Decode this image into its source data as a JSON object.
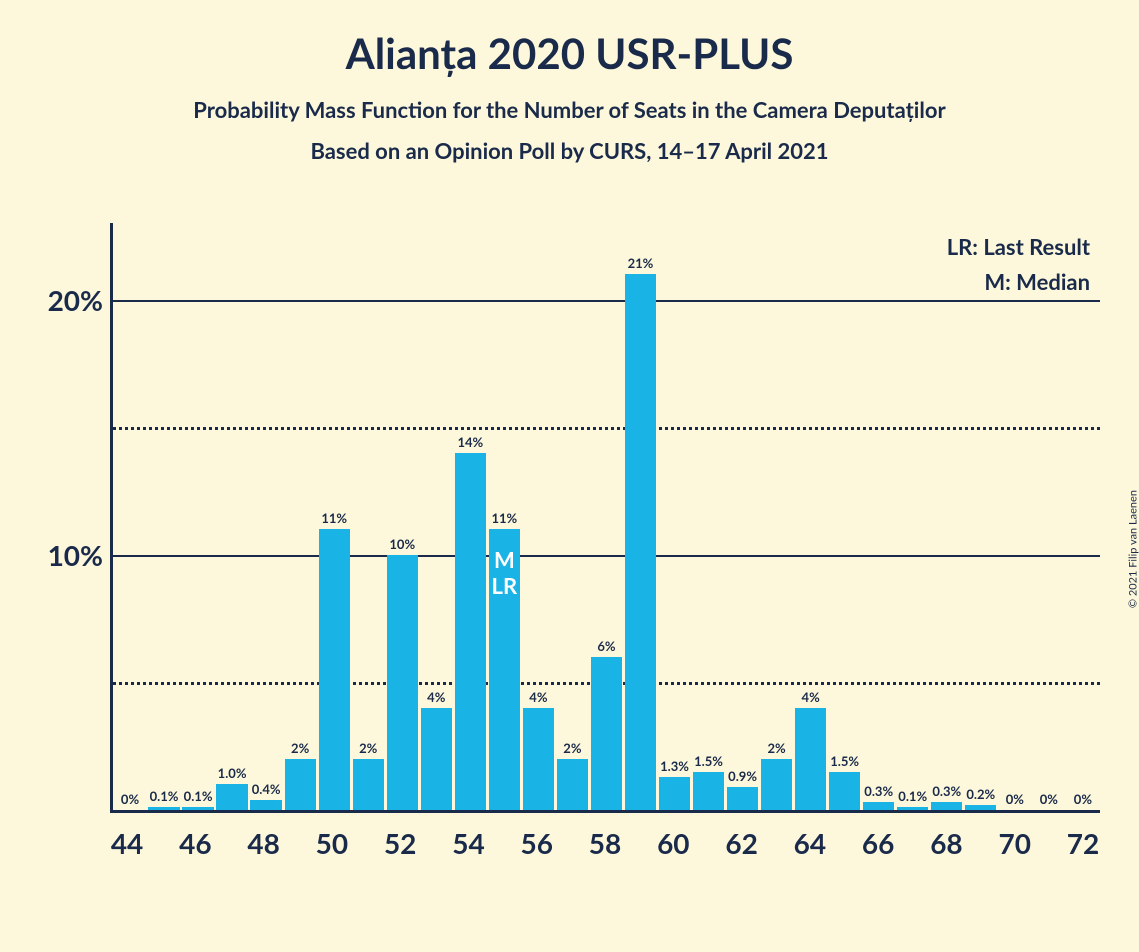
{
  "copyright": "© 2021 Filip van Laenen",
  "title": "Alianța 2020 USR-PLUS",
  "subtitle1": "Probability Mass Function for the Number of Seats in the Camera Deputaților",
  "subtitle2": "Based on an Opinion Poll by CURS, 14–17 April 2021",
  "legend": {
    "lr": "LR: Last Result",
    "m": "M: Median"
  },
  "chart": {
    "type": "bar",
    "bar_color": "#19b3e6",
    "background_color": "#fdf8db",
    "text_color": "#1a2a4a",
    "marker_text_color": "#ffffff",
    "ylim": [
      0,
      23
    ],
    "y_ticks": [
      {
        "value": 20,
        "label": "20%",
        "style": "solid"
      },
      {
        "value": 15,
        "label": "",
        "style": "dotted"
      },
      {
        "value": 10,
        "label": "10%",
        "style": "solid"
      },
      {
        "value": 5,
        "label": "",
        "style": "dotted"
      }
    ],
    "x_tick_every": 2,
    "bars": [
      {
        "x": 44,
        "value": 0,
        "label": "0%"
      },
      {
        "x": 45,
        "value": 0.1,
        "label": "0.1%"
      },
      {
        "x": 46,
        "value": 0.1,
        "label": "0.1%"
      },
      {
        "x": 47,
        "value": 1.0,
        "label": "1.0%"
      },
      {
        "x": 48,
        "value": 0.4,
        "label": "0.4%"
      },
      {
        "x": 49,
        "value": 2,
        "label": "2%"
      },
      {
        "x": 50,
        "value": 11,
        "label": "11%"
      },
      {
        "x": 51,
        "value": 2,
        "label": "2%"
      },
      {
        "x": 52,
        "value": 10,
        "label": "10%"
      },
      {
        "x": 53,
        "value": 4,
        "label": "4%"
      },
      {
        "x": 54,
        "value": 14,
        "label": "14%"
      },
      {
        "x": 55,
        "value": 11,
        "label": "11%",
        "marker": "M\nLR"
      },
      {
        "x": 56,
        "value": 4,
        "label": "4%"
      },
      {
        "x": 57,
        "value": 2,
        "label": "2%"
      },
      {
        "x": 58,
        "value": 6,
        "label": "6%"
      },
      {
        "x": 59,
        "value": 21,
        "label": "21%"
      },
      {
        "x": 60,
        "value": 1.3,
        "label": "1.3%"
      },
      {
        "x": 61,
        "value": 1.5,
        "label": "1.5%"
      },
      {
        "x": 62,
        "value": 0.9,
        "label": "0.9%"
      },
      {
        "x": 63,
        "value": 2,
        "label": "2%"
      },
      {
        "x": 64,
        "value": 4,
        "label": "4%"
      },
      {
        "x": 65,
        "value": 1.5,
        "label": "1.5%"
      },
      {
        "x": 66,
        "value": 0.3,
        "label": "0.3%"
      },
      {
        "x": 67,
        "value": 0.1,
        "label": "0.1%"
      },
      {
        "x": 68,
        "value": 0.3,
        "label": "0.3%"
      },
      {
        "x": 69,
        "value": 0.2,
        "label": "0.2%"
      },
      {
        "x": 70,
        "value": 0,
        "label": "0%"
      },
      {
        "x": 71,
        "value": 0,
        "label": "0%"
      },
      {
        "x": 72,
        "value": 0,
        "label": "0%"
      }
    ]
  }
}
